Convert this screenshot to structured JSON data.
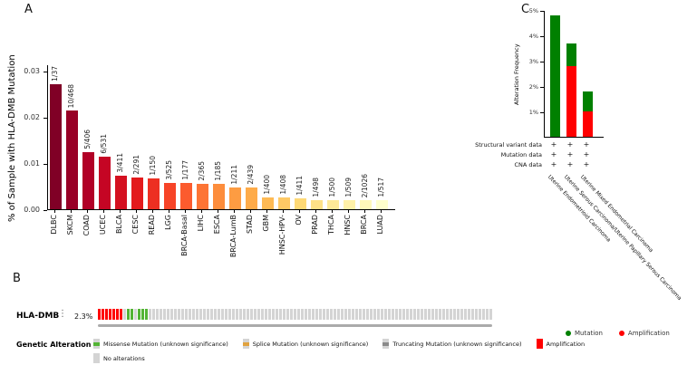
{
  "panel_labels": {
    "a": "A",
    "b": "B",
    "c": "C"
  },
  "chart_data": [
    {
      "id": "pan-cancer-hla-dmb-mutation-frequency",
      "type": "bar",
      "title": "",
      "xlabel": "",
      "ylabel": "% of Sample with HLA-DMB Mutation",
      "ylim": [
        0,
        0.0313
      ],
      "ytick_values": [
        0,
        0.01,
        0.02,
        0.03
      ],
      "yticks": [
        "0.00",
        "0.01",
        "0.02",
        "0.03"
      ],
      "grid": false,
      "legend_position": "none",
      "categories": [
        "DLBC",
        "SKCM",
        "COAD",
        "UCEC",
        "BLCA",
        "CESC",
        "READ",
        "LGG",
        "BRCA-Basal",
        "LIHC",
        "ESCA",
        "BRCA-LumB",
        "STAD",
        "GBM",
        "HNSC-HPV-",
        "OV",
        "PRAD",
        "THCA",
        "HNSC",
        "BRCA",
        "LUAD"
      ],
      "values": [
        0.027,
        0.0214,
        0.0123,
        0.0113,
        0.0073,
        0.0069,
        0.0067,
        0.0057,
        0.0056,
        0.0055,
        0.0054,
        0.0047,
        0.0046,
        0.0025,
        0.00245,
        0.00243,
        0.00201,
        0.002,
        0.00196,
        0.00195,
        0.00193
      ],
      "bar_labels": [
        "1/37",
        "10/468",
        "5/406",
        "6/531",
        "3/411",
        "2/291",
        "1/150",
        "3/525",
        "1/177",
        "2/365",
        "1/185",
        "1/211",
        "2/439",
        "1/400",
        "1/408",
        "1/411",
        "1/498",
        "1/500",
        "1/509",
        "2/1026",
        "1/517"
      ],
      "bar_colors": [
        "#800026",
        "#980026",
        "#b10026",
        "#c50524",
        "#d41020",
        "#e31a1c",
        "#ed2f22",
        "#f74427",
        "#fc5b2e",
        "#fd7435",
        "#fd8d3c",
        "#fd9c42",
        "#feab49",
        "#feba54",
        "#fec965",
        "#fed976",
        "#fee187",
        "#fee998",
        "#fff1a9",
        "#fff8ba",
        "#ffffcc"
      ]
    },
    {
      "id": "ucec-subtype-alteration-frequency",
      "type": "bar",
      "stacked": true,
      "title": "",
      "xlabel": "",
      "ylabel": "Alteration Frequency",
      "ylim": [
        0,
        5
      ],
      "ytick_values": [
        1,
        2,
        3,
        4,
        5
      ],
      "yticks": [
        "1%",
        "2%",
        "3%",
        "4%",
        "5%"
      ],
      "grid": false,
      "categories": [
        "Uterine Endometrioid Carcinoma",
        "Uterine Serous Carcinoma/Uterine Papillary Serous Carcinoma",
        "Uterine Mixed Endometrial Carcinoma"
      ],
      "series": [
        {
          "name": "Mutation",
          "color": "#008000",
          "values": [
            4.8,
            0.9,
            0.8
          ]
        },
        {
          "name": "Amplification",
          "color": "#ff0000",
          "values": [
            0,
            2.8,
            1.0
          ]
        }
      ],
      "data_availability_rows": [
        {
          "label": "Structural variant data",
          "values": [
            "+",
            "+",
            "+"
          ]
        },
        {
          "label": "Mutation data",
          "values": [
            "+",
            "+",
            "+"
          ]
        },
        {
          "label": "CNA data",
          "values": [
            "+",
            "+",
            "+"
          ]
        }
      ],
      "legend": [
        {
          "label": "Mutation",
          "color": "#008000"
        },
        {
          "label": "Amplification",
          "color": "#ff0000"
        }
      ],
      "legend_position": "bottom"
    }
  ],
  "oncoprint": {
    "gene": "HLA-DMB",
    "more_icon": "⋮",
    "alteration_percent": "2.3%",
    "colors": {
      "missense": "#53b435",
      "splice": "#e0a23f",
      "truncating": "#8a8a8a",
      "amplification": "#ff0000",
      "no_alteration": "#d4d4d4"
    },
    "track_segments": [
      {
        "type": "amplification",
        "count": 7
      },
      {
        "type": "no_alteration",
        "count": 1
      },
      {
        "type": "missense",
        "count": 2
      },
      {
        "type": "no_alteration",
        "count": 1
      },
      {
        "type": "missense",
        "count": 3
      },
      {
        "type": "no_alteration",
        "count": 95
      }
    ],
    "legend_title": "Genetic Alteration",
    "legend_items": [
      {
        "label": "Missense Mutation (unknown significance)",
        "type": "missense",
        "style": "band"
      },
      {
        "label": "Splice Mutation (unknown significance)",
        "type": "splice",
        "style": "band"
      },
      {
        "label": "Truncating Mutation (unknown significance)",
        "type": "truncating",
        "style": "band"
      },
      {
        "label": "Amplification",
        "type": "amplification",
        "style": "full"
      },
      {
        "label": "No alterations",
        "type": "no_alteration",
        "style": "full"
      }
    ]
  }
}
